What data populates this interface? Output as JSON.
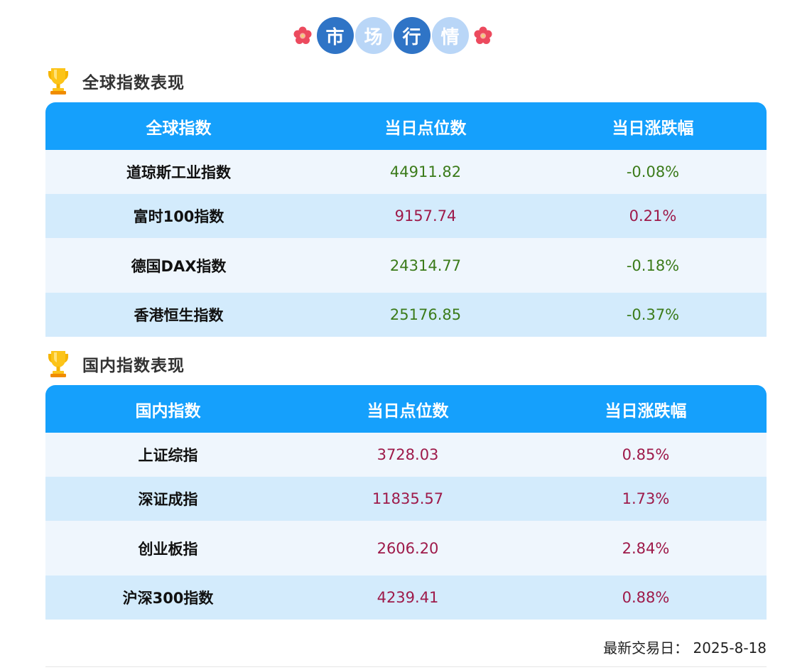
{
  "banner": {
    "chars": [
      "市",
      "场",
      "行",
      "情"
    ],
    "colors": {
      "dark": "#2f74c6",
      "light": "#b9d6f7"
    }
  },
  "global": {
    "title": "全球指数表现",
    "headers": [
      "全球指数",
      "当日点位数",
      "当日涨跌幅"
    ],
    "rows": [
      {
        "name": "道琼斯工业指数",
        "value": "44911.82",
        "change": "-0.08%",
        "trend": "down"
      },
      {
        "name": "富时100指数",
        "value": "9157.74",
        "change": "0.21%",
        "trend": "up"
      },
      {
        "name": "德国DAX指数",
        "value": "24314.77",
        "change": "-0.18%",
        "trend": "down"
      },
      {
        "name": "香港恒生指数",
        "value": "25176.85",
        "change": "-0.37%",
        "trend": "down"
      }
    ]
  },
  "domestic": {
    "title": "国内指数表现",
    "headers": [
      "国内指数",
      "当日点位数",
      "当日涨跌幅"
    ],
    "rows": [
      {
        "name": "上证综指",
        "value": "3728.03",
        "change": "0.85%",
        "trend": "up"
      },
      {
        "name": "深证成指",
        "value": "11835.57",
        "change": "1.73%",
        "trend": "up"
      },
      {
        "name": "创业板指",
        "value": "2606.20",
        "change": "2.84%",
        "trend": "up"
      },
      {
        "name": "沪深300指数",
        "value": "4239.41",
        "change": "0.88%",
        "trend": "up"
      }
    ]
  },
  "footer": {
    "latest_trade_date": "最新交易日：  2025-8-18"
  },
  "colors": {
    "header_bg": "#15a0fc",
    "row_odd": "#eff6fd",
    "row_even": "#d3ebfc",
    "up": "#9e1a4a",
    "down": "#3b7b1a"
  }
}
